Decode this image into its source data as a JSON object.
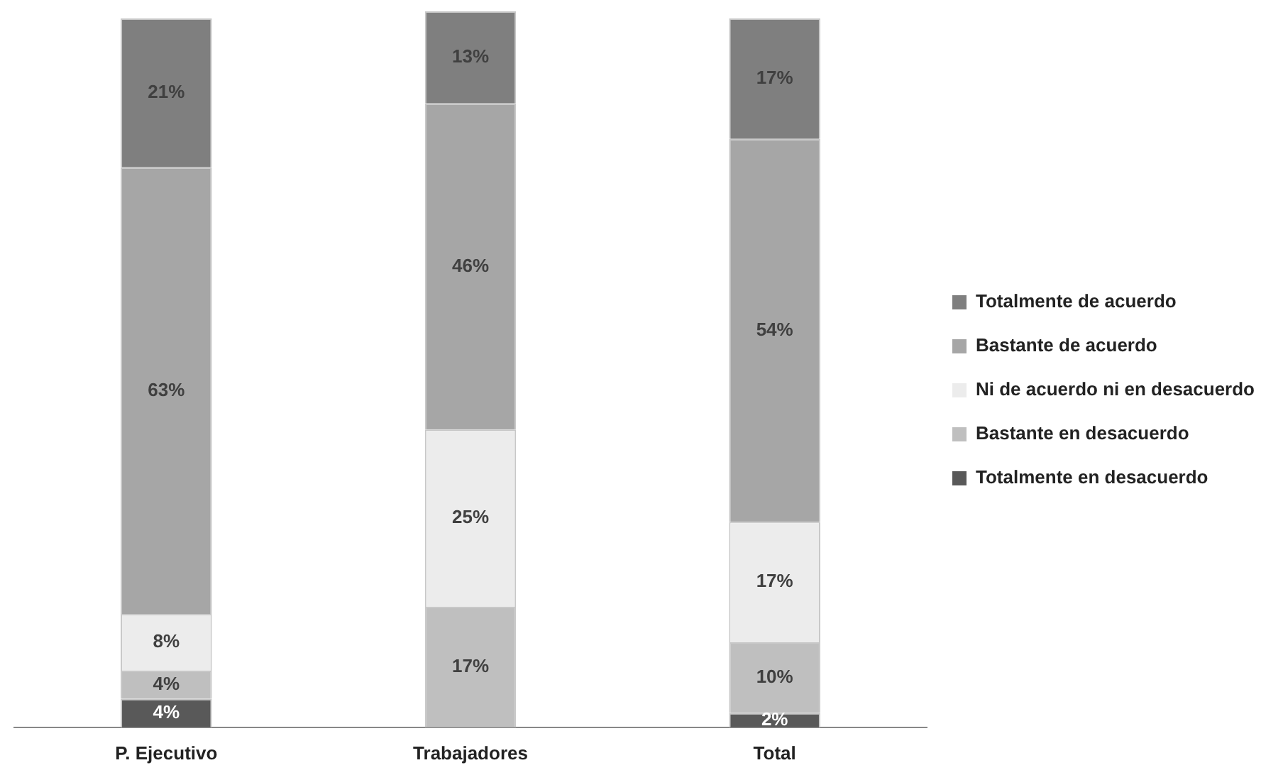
{
  "chart_data": {
    "type": "bar",
    "stacked": true,
    "categories": [
      "P. Ejecutivo",
      "Trabajadores",
      "Total"
    ],
    "legend": "right",
    "grid": false,
    "series": [
      {
        "name": "Totalmente en desacuerdo",
        "color": "#595959",
        "values": [
          4,
          null,
          2
        ],
        "value_labels": [
          "4%",
          null,
          "2%"
        ]
      },
      {
        "name": "Bastante en desacuerdo",
        "color": "#bfbfbf",
        "values": [
          4,
          17,
          10
        ],
        "value_labels": [
          "4%",
          "17%",
          "10%"
        ]
      },
      {
        "name": "Ni de acuerdo ni en desacuerdo",
        "color": "#ececec",
        "values": [
          8,
          25,
          17
        ],
        "value_labels": [
          "8%",
          "25%",
          "17%"
        ]
      },
      {
        "name": "Bastante de acuerdo",
        "color": "#a6a6a6",
        "values": [
          63,
          46,
          54
        ],
        "value_labels": [
          "63%",
          "46%",
          "54%"
        ]
      },
      {
        "name": "Totalmente de acuerdo",
        "color": "#7f7f7f",
        "values": [
          21,
          13,
          17
        ],
        "value_labels": [
          "21%",
          "13%",
          "17%"
        ]
      }
    ]
  }
}
